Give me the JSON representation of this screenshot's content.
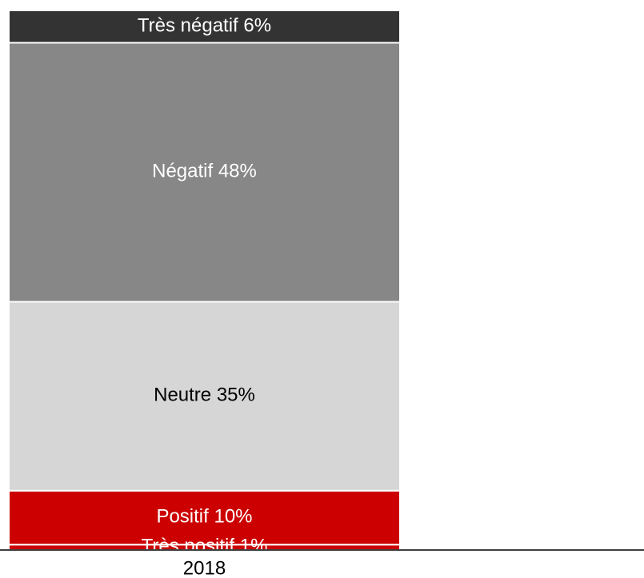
{
  "chart_data": {
    "type": "stacked_bar",
    "categories": [
      "2018"
    ],
    "ylim": [
      0,
      100
    ],
    "series": [
      {
        "name": "Très positif",
        "color": "#cc0000",
        "values": [
          1
        ],
        "value_labels": [
          "1%"
        ]
      },
      {
        "name": "Positif",
        "color": "#cc0000",
        "values": [
          10
        ],
        "value_labels": [
          "10%"
        ]
      },
      {
        "name": "Neutre",
        "color": "#d6d6d6",
        "values": [
          35
        ],
        "value_labels": [
          "35%"
        ]
      },
      {
        "name": "Négatif",
        "color": "#878787",
        "values": [
          48
        ],
        "value_labels": [
          "48%"
        ]
      },
      {
        "name": "Très négatif",
        "color": "#333333",
        "values": [
          6
        ],
        "value_labels": [
          "6%"
        ]
      }
    ]
  }
}
